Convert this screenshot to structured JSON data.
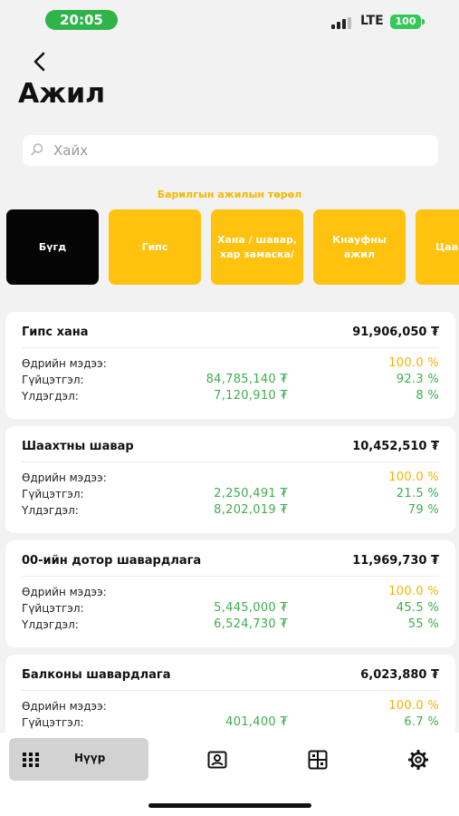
{
  "status_bar": {
    "time": "20:05",
    "network": "LTE",
    "battery": "100"
  },
  "header": {
    "title": "Ажил"
  },
  "search": {
    "placeholder": "Хайх"
  },
  "section": {
    "label": "Барилгын ажилын төрөл"
  },
  "chips": [
    {
      "label": "Бүгд",
      "active": true
    },
    {
      "label": "Гипс",
      "active": false
    },
    {
      "label": "Хана / шавар, хар замаска/",
      "active": false
    },
    {
      "label": "Кнауфны ажил",
      "active": false
    },
    {
      "label": "Цаа зам",
      "active": false
    }
  ],
  "row_labels": {
    "daily": "Өдрийн мэдээ:",
    "progress": "Гүйцэтгэл:",
    "remaining": "Үлдэгдэл:"
  },
  "cards": [
    {
      "title": "Гипс хана",
      "total": "91,906,050 ₮",
      "daily_pct": "100.0 %",
      "progress_amount": "84,785,140 ₮",
      "progress_pct": "92.3 %",
      "remaining_amount": "7,120,910 ₮",
      "remaining_pct": "8 %"
    },
    {
      "title": "Шаахтны шавар",
      "total": "10,452,510 ₮",
      "daily_pct": "100.0 %",
      "progress_amount": "2,250,491 ₮",
      "progress_pct": "21.5 %",
      "remaining_amount": "8,202,019 ₮",
      "remaining_pct": "79 %"
    },
    {
      "title": "00-ийн дотор шавардлага",
      "total": "11,969,730 ₮",
      "daily_pct": "100.0 %",
      "progress_amount": "5,445,000 ₮",
      "progress_pct": "45.5 %",
      "remaining_amount": "6,524,730 ₮",
      "remaining_pct": "55 %"
    },
    {
      "title": "Балконы шавардлага",
      "total": "6,023,880 ₮",
      "daily_pct": "100.0 %",
      "progress_amount": "401,400 ₮",
      "progress_pct": "6.7 %",
      "remaining_amount": "",
      "remaining_pct": ""
    }
  ],
  "bottom_nav": {
    "home_label": "Нүүр"
  },
  "colors": {
    "accent": "#ffc20e",
    "active_chip": "#050505",
    "positive": "#3fae4f",
    "daily": "#f4b400"
  }
}
